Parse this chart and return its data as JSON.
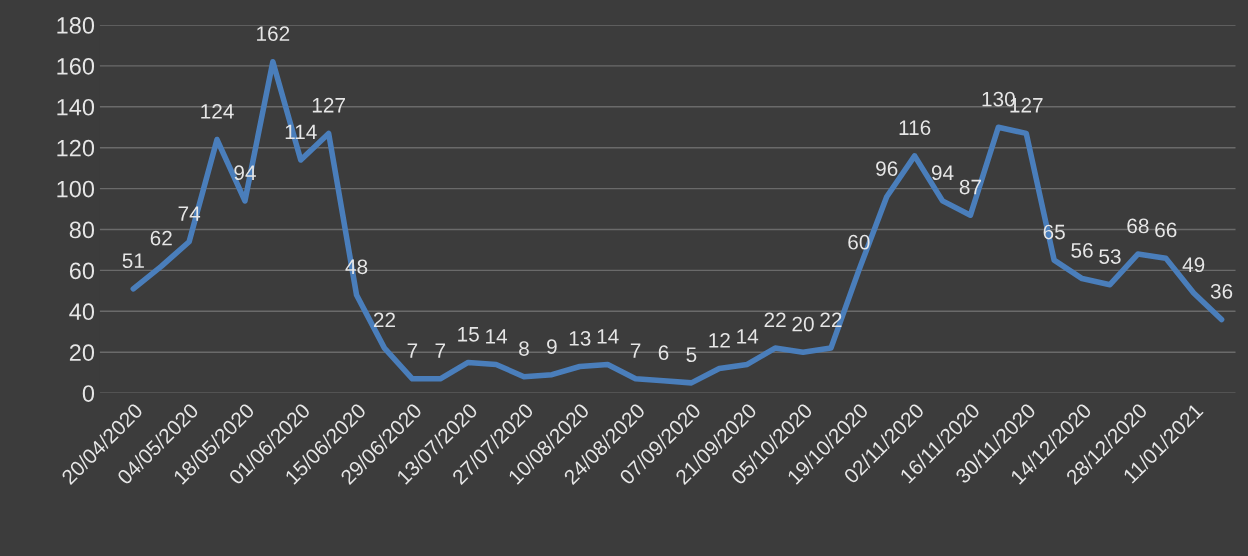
{
  "chart_data": {
    "type": "line",
    "categories": [
      "20/04/2020",
      null,
      "04/05/2020",
      null,
      "18/05/2020",
      null,
      "01/06/2020",
      null,
      "15/06/2020",
      null,
      "29/06/2020",
      null,
      "13/07/2020",
      null,
      "27/07/2020",
      null,
      "10/08/2020",
      null,
      "24/08/2020",
      null,
      "07/09/2020",
      null,
      "21/09/2020",
      null,
      "05/10/2020",
      null,
      "19/10/2020",
      null,
      "02/11/2020",
      null,
      "16/11/2020",
      null,
      "30/11/2020",
      null,
      "14/12/2020",
      null,
      "28/12/2020",
      null,
      "11/01/2021",
      null
    ],
    "series": [
      {
        "color": "#4a7ebb",
        "values": [
          51,
          62,
          74,
          124,
          94,
          162,
          114,
          127,
          48,
          22,
          7,
          7,
          15,
          14,
          8,
          9,
          13,
          14,
          7,
          6,
          5,
          12,
          14,
          22,
          20,
          22,
          60,
          96,
          116,
          94,
          87,
          130,
          127,
          65,
          56,
          53,
          68,
          66,
          49,
          36
        ]
      }
    ],
    "ylim": [
      0,
      180
    ],
    "yticks": [
      0,
      20,
      40,
      60,
      80,
      100,
      120,
      140,
      160,
      180
    ],
    "grid": "y",
    "data_labels": true,
    "marker": "none",
    "line_style": "solid"
  }
}
